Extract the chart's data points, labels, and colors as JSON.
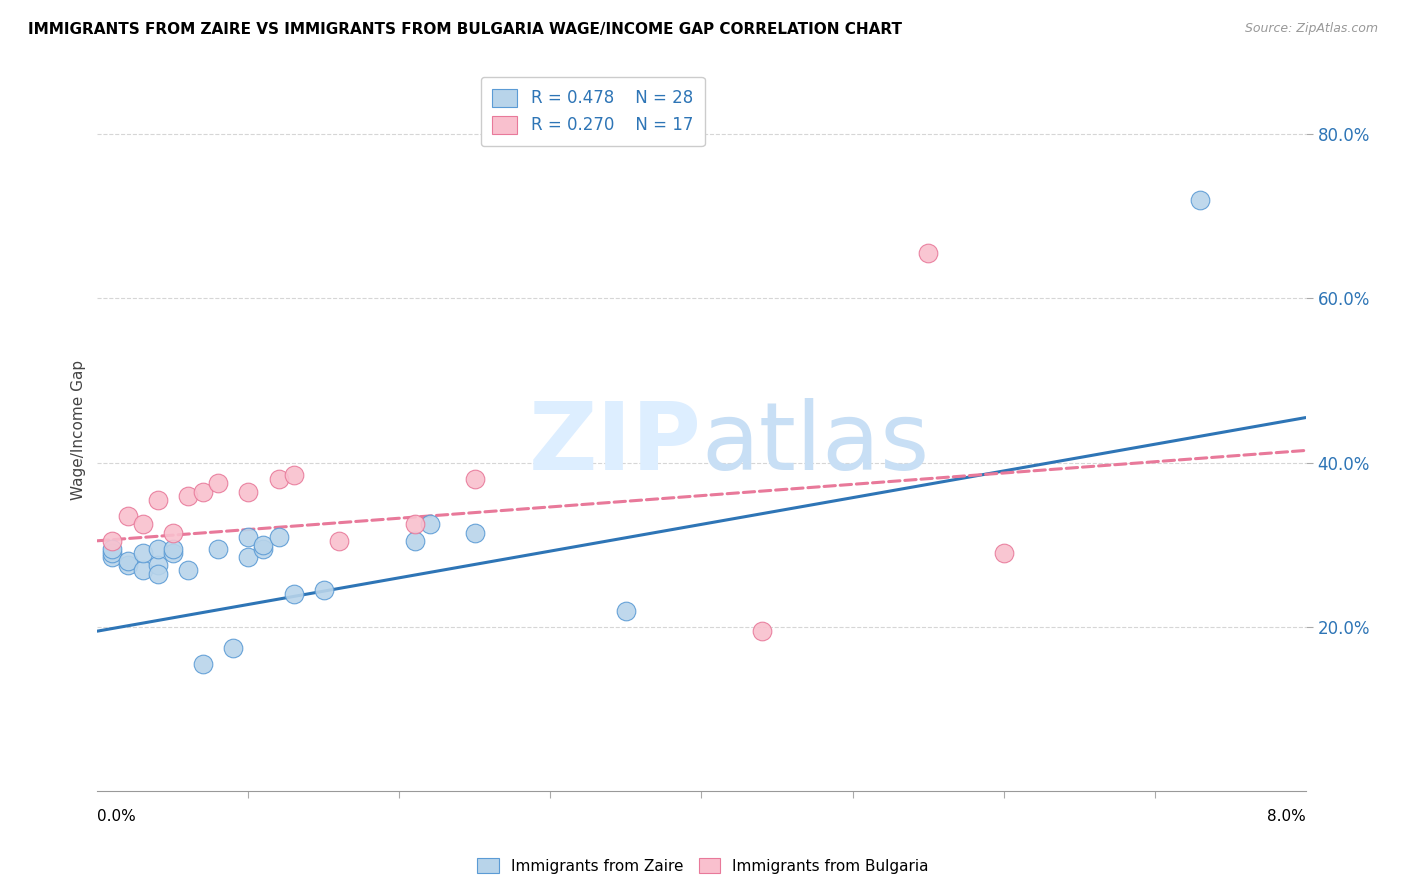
{
  "title": "IMMIGRANTS FROM ZAIRE VS IMMIGRANTS FROM BULGARIA WAGE/INCOME GAP CORRELATION CHART",
  "source": "Source: ZipAtlas.com",
  "ylabel": "Wage/Income Gap",
  "yticks": [
    0.2,
    0.4,
    0.6,
    0.8
  ],
  "ytick_labels": [
    "20.0%",
    "40.0%",
    "60.0%",
    "80.0%"
  ],
  "xtick_labels": [
    "0.0%",
    "8.0%"
  ],
  "xmin": 0.0,
  "xmax": 0.08,
  "ymin": 0.0,
  "ymax": 0.88,
  "legend_r1": "R = 0.478",
  "legend_n1": "N = 28",
  "legend_r2": "R = 0.270",
  "legend_n2": "N = 17",
  "zaire_fill": "#b8d4ea",
  "zaire_edge": "#5b9bd5",
  "bulgaria_fill": "#f9c0ce",
  "bulgaria_edge": "#e8799a",
  "zaire_line_color": "#2e75b6",
  "bulgaria_line_color": "#e8799a",
  "watermark_color": "#ddeeff",
  "zaire_x": [
    0.001,
    0.001,
    0.001,
    0.002,
    0.002,
    0.003,
    0.003,
    0.004,
    0.004,
    0.004,
    0.005,
    0.005,
    0.006,
    0.007,
    0.008,
    0.009,
    0.01,
    0.01,
    0.011,
    0.011,
    0.012,
    0.013,
    0.015,
    0.021,
    0.022,
    0.025,
    0.035,
    0.073
  ],
  "zaire_y": [
    0.285,
    0.29,
    0.295,
    0.275,
    0.28,
    0.27,
    0.29,
    0.275,
    0.265,
    0.295,
    0.29,
    0.295,
    0.27,
    0.155,
    0.295,
    0.175,
    0.285,
    0.31,
    0.295,
    0.3,
    0.31,
    0.24,
    0.245,
    0.305,
    0.325,
    0.315,
    0.22,
    0.72
  ],
  "bulgaria_x": [
    0.001,
    0.002,
    0.003,
    0.004,
    0.005,
    0.006,
    0.007,
    0.008,
    0.01,
    0.012,
    0.013,
    0.016,
    0.021,
    0.025,
    0.044,
    0.055,
    0.06
  ],
  "bulgaria_y": [
    0.305,
    0.335,
    0.325,
    0.355,
    0.315,
    0.36,
    0.365,
    0.375,
    0.365,
    0.38,
    0.385,
    0.305,
    0.325,
    0.38,
    0.195,
    0.655,
    0.29
  ],
  "zaire_trend_x": [
    0.0,
    0.08
  ],
  "zaire_trend_y": [
    0.195,
    0.455
  ],
  "bulgaria_trend_x": [
    0.0,
    0.08
  ],
  "bulgaria_trend_y": [
    0.305,
    0.415
  ]
}
